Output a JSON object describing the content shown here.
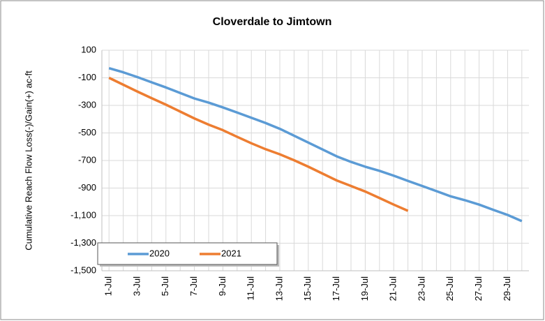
{
  "chart_data": {
    "type": "line",
    "title": "Cloverdale to Jimtown",
    "y_label": "Cumulative Reach Flow Loss(-)/Gain(+) ac-ft",
    "categories": [
      "1-Jul",
      null,
      "3-Jul",
      null,
      "5-Jul",
      null,
      "7-Jul",
      null,
      "9-Jul",
      null,
      "11-Jul",
      null,
      "13-Jul",
      null,
      "15-Jul",
      null,
      "17-Jul",
      null,
      "19-Jul",
      null,
      "21-Jul",
      null,
      "23-Jul",
      null,
      "25-Jul",
      null,
      "27-Jul",
      null,
      "29-Jul",
      null
    ],
    "series": [
      {
        "name": "2020",
        "color": "#5b9bd5",
        "values": [
          -30,
          -60,
          -95,
          -133,
          -170,
          -210,
          -250,
          -280,
          -315,
          -352,
          -390,
          -428,
          -470,
          -520,
          -570,
          -620,
          -670,
          -710,
          -745,
          -775,
          -810,
          -848,
          -885,
          -922,
          -960,
          -988,
          -1020,
          -1058,
          -1095,
          -1140
        ]
      },
      {
        "name": "2021",
        "color": "#ed7d31",
        "values": [
          -100,
          -150,
          -200,
          -248,
          -295,
          -345,
          -395,
          -440,
          -480,
          -528,
          -575,
          -618,
          -655,
          -698,
          -745,
          -795,
          -845,
          -885,
          -925,
          -972,
          -1020,
          -1065,
          null,
          null,
          null,
          null,
          null,
          null,
          null,
          null
        ]
      }
    ],
    "ylim": [
      -1500,
      100
    ],
    "yticks": [
      100,
      -100,
      -300,
      -500,
      -700,
      -900,
      {
        "value": -1100,
        "label": "-1,100"
      },
      {
        "value": -1300,
        "label": "-1,300"
      },
      {
        "value": -1500,
        "label": "-1,500"
      }
    ],
    "grid": true,
    "legend": "lower left"
  }
}
